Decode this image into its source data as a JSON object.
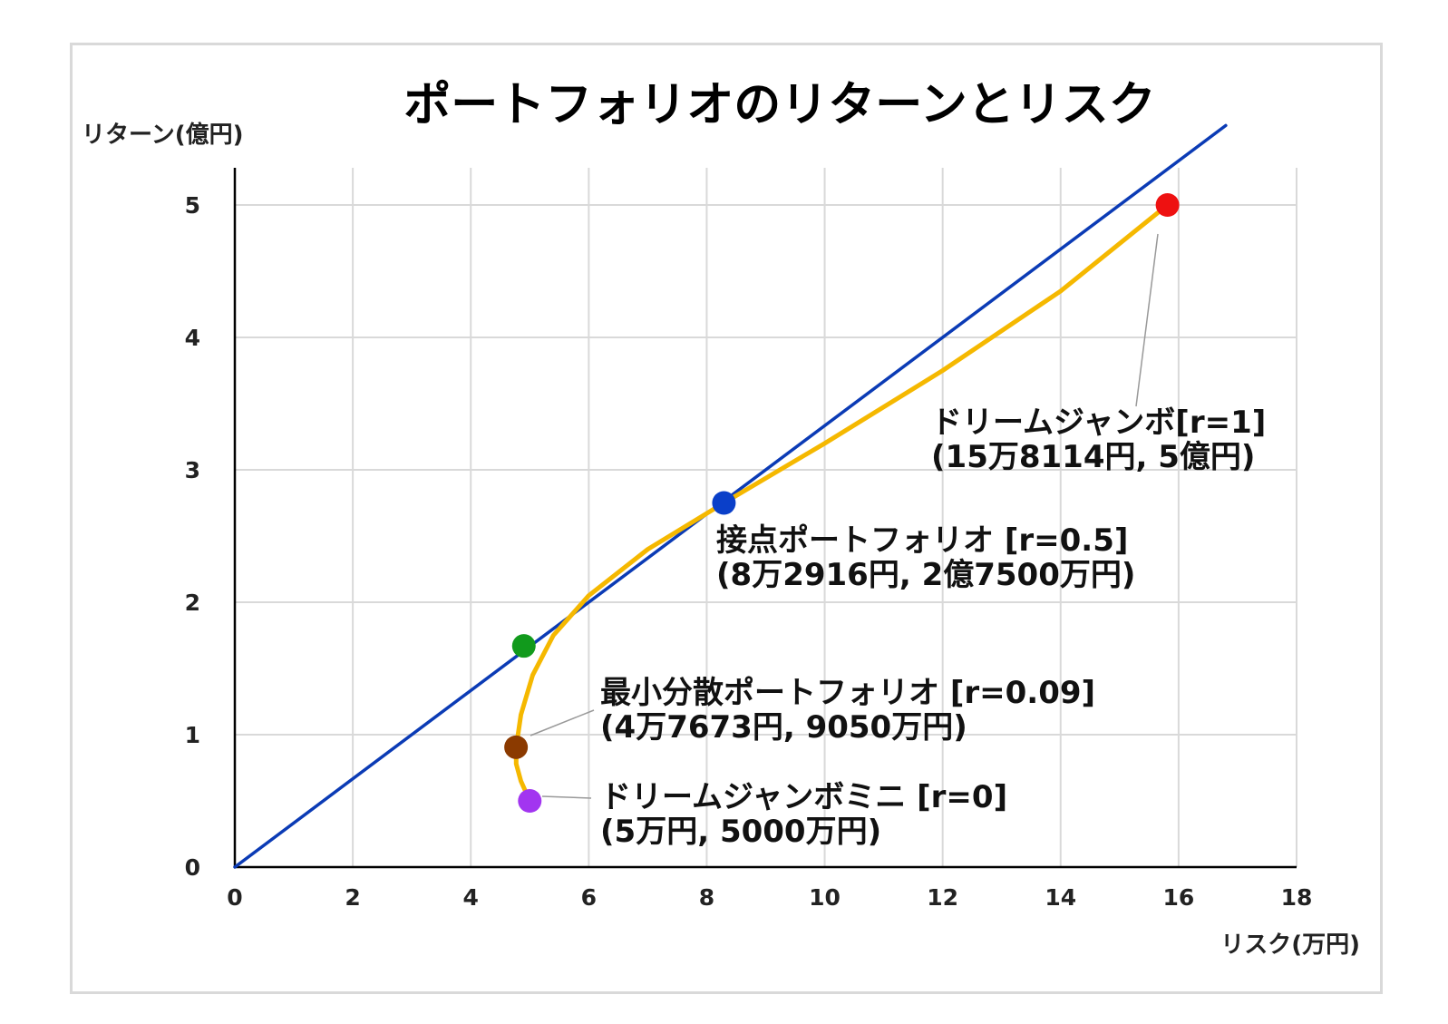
{
  "chart_data": {
    "type": "line",
    "title": "ポートフォリオのリターンとリスク",
    "xlabel": "リスク(万円)",
    "ylabel": "リターン(億円)",
    "xlim": [
      0,
      18
    ],
    "ylim": [
      0,
      5.3
    ],
    "xticks": [
      0,
      2,
      4,
      6,
      8,
      10,
      12,
      14,
      16,
      18
    ],
    "yticks": [
      0,
      1,
      2,
      3,
      4,
      5
    ],
    "grid": true,
    "series": [
      {
        "color": "#0b3bb5",
        "points": [
          [
            0,
            0
          ],
          [
            16.8,
            5.6
          ]
        ]
      },
      {
        "color": "#f5b800",
        "points": [
          [
            5.0,
            0.5
          ],
          [
            4.85,
            0.65
          ],
          [
            4.77,
            0.78
          ],
          [
            4.77,
            0.905
          ],
          [
            4.85,
            1.15
          ],
          [
            5.05,
            1.45
          ],
          [
            5.4,
            1.75
          ],
          [
            6.0,
            2.05
          ],
          [
            7.0,
            2.4
          ],
          [
            8.2917,
            2.75
          ],
          [
            10.0,
            3.2
          ],
          [
            12.0,
            3.75
          ],
          [
            14.0,
            4.35
          ],
          [
            15.8114,
            5.0
          ]
        ]
      }
    ],
    "points": [
      {
        "x": 15.8114,
        "y": 5.0,
        "color": "#ee1111",
        "label_lines": [
          "ドリームジャンボ[r=1]",
          "(15万8114円, 5億円)"
        ]
      },
      {
        "x": 8.2916,
        "y": 2.75,
        "color": "#0a3fc9",
        "label_lines": [
          "接点ポートフォリオ [r=0.5]",
          "(8万2916円, 2億7500万円)"
        ]
      },
      {
        "x": 4.9,
        "y": 1.67,
        "color": "#119a1c",
        "label_lines": []
      },
      {
        "x": 4.7673,
        "y": 0.905,
        "color": "#8b3a00",
        "label_lines": [
          "最小分散ポートフォリオ [r=0.09]",
          "(4万7673円, 9050万円)"
        ]
      },
      {
        "x": 5.0,
        "y": 0.5,
        "color": "#a235f0",
        "label_lines": [
          "ドリームジャンボミニ [r=0]",
          "(5万円, 5000万円)"
        ]
      }
    ]
  }
}
